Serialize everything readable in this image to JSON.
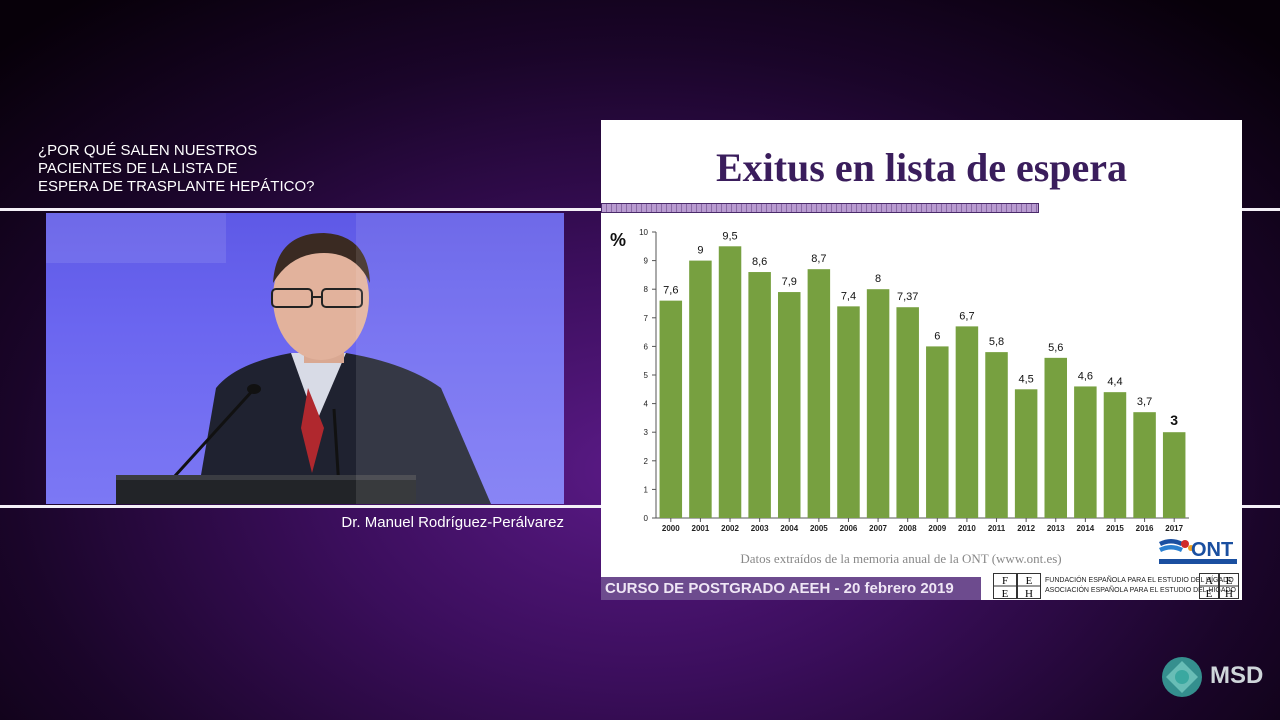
{
  "talk_title_lines": [
    "¿POR QUÉ SALEN NUESTROS",
    "PACIENTES DE LA LISTA DE",
    "ESPERA DE TRASPLANTE HEPÁTICO?"
  ],
  "speaker_name": "Dr. Manuel Rodríguez-Perálvarez",
  "slide": {
    "title": "Exitus en lista de espera",
    "source_note": "Datos extraídos de la memoria anual de la ONT (www.ont.es)",
    "footer": "CURSO DE POSTGRADO AEEH - 20 febrero 2019",
    "ont_logo_text": "ONT",
    "foundation_lines": [
      "FUNDACIÓN ESPAÑOLA PARA EL ESTUDIO DEL HÍGADO",
      "ASOCIACIÓN ESPAÑOLA PARA EL ESTUDIO DEL HÍGADO"
    ],
    "feeh_letters": [
      "F",
      "E",
      "E",
      "H"
    ],
    "aeeh_letters": [
      "A",
      "E",
      "E",
      "H"
    ]
  },
  "chart_data": {
    "type": "bar",
    "title": "Exitus en lista de espera",
    "ylabel": "%",
    "xlabel": "",
    "ylim": [
      0,
      10
    ],
    "yticks": [
      0,
      1,
      2,
      3,
      4,
      5,
      6,
      7,
      8,
      9,
      10
    ],
    "grid": false,
    "bar_color": "#77a040",
    "categories": [
      "2000",
      "2001",
      "2002",
      "2003",
      "2004",
      "2005",
      "2006",
      "2007",
      "2008",
      "2009",
      "2010",
      "2011",
      "2012",
      "2013",
      "2014",
      "2015",
      "2016",
      "2017"
    ],
    "values": [
      7.6,
      9,
      9.5,
      8.6,
      7.9,
      8.7,
      7.4,
      8,
      7.37,
      6,
      6.7,
      5.8,
      4.5,
      5.6,
      4.6,
      4.4,
      3.7,
      3
    ],
    "value_labels": [
      "7,6",
      "9",
      "9,5",
      "8,6",
      "7,9",
      "8,7",
      "7,4",
      "8",
      "7,37",
      "6",
      "6,7",
      "5,8",
      "4,5",
      "5,6",
      "4,6",
      "4,4",
      "3,7",
      "3"
    ],
    "highlighted_label": "3"
  },
  "brand": {
    "logo_text": "MSD",
    "logo_color": "#3aa8a0"
  }
}
